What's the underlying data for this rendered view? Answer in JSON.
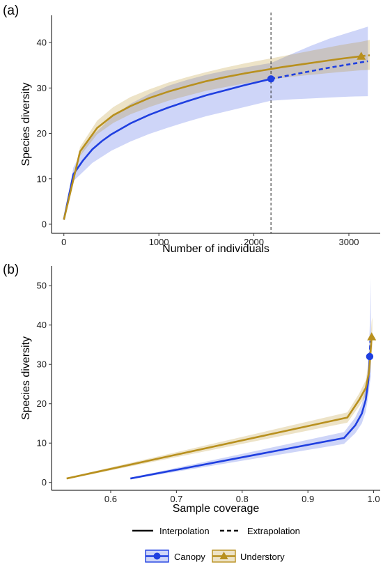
{
  "chart_data": [
    {
      "panel": "(a)",
      "type": "line",
      "xlabel": "Number of individuals",
      "ylabel": "Species diversity",
      "xlim": [
        -130,
        3330
      ],
      "ylim": [
        -2,
        46
      ],
      "xticks": [
        0,
        1000,
        2000,
        3000
      ],
      "yticks": [
        0,
        10,
        20,
        30,
        40
      ],
      "grid": false,
      "reference_line_x": 2180,
      "series": [
        {
          "name": "Canopy",
          "color": "#1f3fe0",
          "marker": "circle",
          "observed": [
            2180,
            32
          ],
          "interpolation": [
            [
              0,
              1
            ],
            [
              100,
              11
            ],
            [
              200,
              14
            ],
            [
              300,
              16.5
            ],
            [
              400,
              18.3
            ],
            [
              500,
              19.8
            ],
            [
              700,
              22.2
            ],
            [
              900,
              24.1
            ],
            [
              1100,
              25.7
            ],
            [
              1300,
              27.1
            ],
            [
              1500,
              28.4
            ],
            [
              1700,
              29.5
            ],
            [
              1900,
              30.6
            ],
            [
              2180,
              32
            ]
          ],
          "extrapolation": [
            [
              2180,
              32
            ],
            [
              2400,
              32.9
            ],
            [
              2600,
              33.7
            ],
            [
              2800,
              34.5
            ],
            [
              3000,
              35.2
            ],
            [
              3200,
              35.9
            ]
          ],
          "band_upper": [
            [
              0,
              1
            ],
            [
              100,
              12.5
            ],
            [
              200,
              16.5
            ],
            [
              300,
              19.5
            ],
            [
              500,
              23.5
            ],
            [
              700,
              26.5
            ],
            [
              900,
              28.7
            ],
            [
              1100,
              30.5
            ],
            [
              1300,
              31.8
            ],
            [
              1500,
              32.9
            ],
            [
              1700,
              33.8
            ],
            [
              1900,
              34.5
            ],
            [
              2180,
              35.5
            ],
            [
              2400,
              37.5
            ],
            [
              2600,
              39.3
            ],
            [
              2800,
              40.9
            ],
            [
              3000,
              42.2
            ],
            [
              3200,
              43.5
            ]
          ],
          "band_lower": [
            [
              0,
              1
            ],
            [
              100,
              9.5
            ],
            [
              200,
              11.5
            ],
            [
              300,
              13.5
            ],
            [
              500,
              16.2
            ],
            [
              700,
              18.2
            ],
            [
              900,
              19.9
            ],
            [
              1100,
              21.3
            ],
            [
              1300,
              22.6
            ],
            [
              1500,
              23.8
            ],
            [
              1700,
              24.8
            ],
            [
              1900,
              25.8
            ],
            [
              2180,
              27.2
            ],
            [
              2400,
              27.5
            ],
            [
              2600,
              27.7
            ],
            [
              2800,
              27.9
            ],
            [
              3000,
              28.1
            ],
            [
              3200,
              28.2
            ]
          ]
        },
        {
          "name": "Understory",
          "color": "#b8901e",
          "marker": "triangle",
          "observed": [
            3130,
            37
          ],
          "interpolation": [
            [
              0,
              1
            ],
            [
              170,
              16
            ],
            [
              350,
              21.2
            ],
            [
              520,
              24
            ],
            [
              700,
              26
            ],
            [
              900,
              27.8
            ],
            [
              1100,
              29.2
            ],
            [
              1300,
              30.4
            ],
            [
              1500,
              31.5
            ],
            [
              1700,
              32.4
            ],
            [
              1900,
              33.2
            ],
            [
              2100,
              33.9
            ],
            [
              2300,
              34.6
            ],
            [
              2500,
              35.2
            ],
            [
              2700,
              35.8
            ],
            [
              2900,
              36.4
            ],
            [
              3130,
              37
            ]
          ],
          "extrapolation": [
            [
              3130,
              37
            ],
            [
              3220,
              37.2
            ]
          ],
          "band_upper": [
            [
              0,
              1
            ],
            [
              170,
              17
            ],
            [
              350,
              22.8
            ],
            [
              520,
              25.8
            ],
            [
              700,
              28
            ],
            [
              900,
              29.7
            ],
            [
              1100,
              31.2
            ],
            [
              1300,
              32.4
            ],
            [
              1500,
              33.5
            ],
            [
              1700,
              34.5
            ],
            [
              1900,
              35.4
            ],
            [
              2100,
              36.2
            ],
            [
              2300,
              37
            ],
            [
              2500,
              37.8
            ],
            [
              2700,
              38.6
            ],
            [
              2900,
              39.4
            ],
            [
              3130,
              40.2
            ],
            [
              3220,
              40.6
            ]
          ],
          "band_lower": [
            [
              0,
              1
            ],
            [
              170,
              15
            ],
            [
              350,
              19.8
            ],
            [
              520,
              22.3
            ],
            [
              700,
              24.2
            ],
            [
              900,
              25.8
            ],
            [
              1100,
              27.2
            ],
            [
              1300,
              28.3
            ],
            [
              1500,
              29.4
            ],
            [
              1700,
              30.2
            ],
            [
              1900,
              31
            ],
            [
              2100,
              31.6
            ],
            [
              2300,
              32.2
            ],
            [
              2500,
              32.7
            ],
            [
              2700,
              33.1
            ],
            [
              2900,
              33.5
            ],
            [
              3130,
              33.9
            ],
            [
              3220,
              34
            ]
          ]
        }
      ]
    },
    {
      "panel": "(b)",
      "type": "line",
      "xlabel": "Sample coverage",
      "ylabel": "Species diversity",
      "xlim": [
        0.51,
        1.01
      ],
      "ylim": [
        -2,
        55
      ],
      "xticks": [
        0.6,
        0.7,
        0.8,
        0.9,
        1.0
      ],
      "xtick_labels": [
        "0.6",
        "0.7",
        "0.8",
        "0.9",
        "1.0"
      ],
      "yticks": [
        0,
        10,
        20,
        30,
        40,
        50
      ],
      "grid": false,
      "series": [
        {
          "name": "Canopy",
          "color": "#1f3fe0",
          "marker": "circle",
          "observed": [
            0.994,
            32
          ],
          "interpolation": [
            [
              0.63,
              1
            ],
            [
              0.955,
              11.3
            ],
            [
              0.972,
              14.5
            ],
            [
              0.982,
              17.5
            ],
            [
              0.988,
              21
            ],
            [
              0.992,
              26
            ],
            [
              0.994,
              32
            ]
          ],
          "extrapolation": [
            [
              0.994,
              32
            ],
            [
              0.995,
              36
            ]
          ],
          "band_upper": [
            [
              0.63,
              1.2
            ],
            [
              0.955,
              12.8
            ],
            [
              0.972,
              16.5
            ],
            [
              0.982,
              20
            ],
            [
              0.988,
              24
            ],
            [
              0.992,
              30
            ],
            [
              0.995,
              44
            ],
            [
              0.996,
              52
            ]
          ],
          "band_lower": [
            [
              0.63,
              0.8
            ],
            [
              0.955,
              9.8
            ],
            [
              0.972,
              12.5
            ],
            [
              0.982,
              15
            ],
            [
              0.988,
              18
            ],
            [
              0.992,
              22
            ],
            [
              0.994,
              25
            ],
            [
              0.996,
              27
            ]
          ]
        },
        {
          "name": "Understory",
          "color": "#b8901e",
          "marker": "triangle",
          "observed": [
            0.997,
            37
          ],
          "interpolation": [
            [
              0.533,
              1
            ],
            [
              0.96,
              16.5
            ],
            [
              0.978,
              21
            ],
            [
              0.988,
              24
            ],
            [
              0.993,
              28
            ],
            [
              0.997,
              37
            ]
          ],
          "extrapolation": [
            [
              0.997,
              37
            ],
            [
              0.998,
              37.3
            ]
          ],
          "band_upper": [
            [
              0.533,
              1.2
            ],
            [
              0.96,
              17.8
            ],
            [
              0.978,
              22.6
            ],
            [
              0.988,
              26
            ],
            [
              0.993,
              31
            ],
            [
              0.997,
              41
            ],
            [
              0.998,
              42
            ]
          ],
          "band_lower": [
            [
              0.533,
              0.8
            ],
            [
              0.96,
              15.2
            ],
            [
              0.978,
              19.4
            ],
            [
              0.988,
              22
            ],
            [
              0.993,
              25.5
            ],
            [
              0.997,
              33
            ],
            [
              0.998,
              34
            ]
          ]
        }
      ]
    }
  ],
  "legend": {
    "linetype_labels": [
      "Interpolation",
      "Extrapolation"
    ],
    "series_labels": [
      "Canopy",
      "Understory"
    ]
  }
}
